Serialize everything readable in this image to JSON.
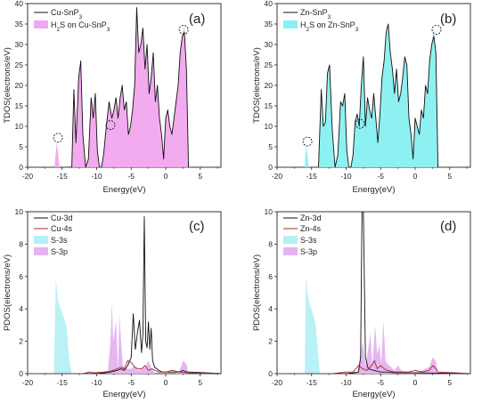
{
  "chart_data": [
    {
      "type": "area",
      "panel_label": "(a)",
      "xlabel": "Energy(eV)",
      "ylabel": "TDOS(electrons/eV)",
      "xlim": [
        -20,
        8
      ],
      "ylim": [
        0,
        40
      ],
      "xticks": [
        -20,
        -15,
        -10,
        -5,
        0,
        5
      ],
      "yticks": [
        0,
        5,
        10,
        15,
        20,
        25,
        30,
        35,
        40
      ],
      "legend_position": "top-left",
      "legend_labels": [
        [
          "Cu-SnP",
          "3",
          ""
        ],
        [
          "H",
          "2",
          "S on Cu-SnP",
          "3",
          ""
        ]
      ],
      "series": [
        {
          "name": "Cu-SnP3",
          "style": "line",
          "color": "#111111",
          "x": [
            -14.3,
            -13.6,
            -13.3,
            -13.0,
            -12.6,
            -12.3,
            -12.0,
            -11.6,
            -11.2,
            -10.8,
            -10.5,
            -10.2,
            -9.9,
            -9.6,
            -9.3,
            -9.0,
            -8.6,
            -8.2,
            -7.8,
            -7.5,
            -7.2,
            -6.9,
            -6.6,
            -6.3,
            -6.0,
            -5.7,
            -5.4,
            -5.1,
            -4.8,
            -4.5,
            -4.2,
            -3.9,
            -3.6,
            -3.3,
            -3.0,
            -2.7,
            -2.4,
            -2.1,
            -1.8,
            -1.5,
            -1.2,
            -0.9,
            -0.6,
            -0.3,
            0.0,
            0.3,
            0.6,
            0.9,
            1.2,
            1.5,
            1.8,
            2.1,
            2.4,
            2.7,
            3.0,
            3.3
          ],
          "y": [
            0,
            0,
            19,
            6,
            22,
            26,
            8,
            0,
            2,
            17,
            12,
            18,
            4,
            0,
            0,
            3,
            10,
            16,
            12,
            14,
            17,
            12,
            17,
            20,
            14,
            16,
            8,
            10,
            14,
            20,
            39,
            28,
            30,
            34,
            24,
            30,
            18,
            22,
            28,
            16,
            20,
            12,
            8,
            2,
            12,
            14,
            10,
            8,
            12,
            16,
            20,
            28,
            32,
            33,
            24,
            0
          ]
        },
        {
          "name": "H2S on Cu-SnP3",
          "style": "fill",
          "color": "#f2a7ef",
          "x": [
            -16.1,
            -15.8,
            -15.6,
            -15.4,
            -14.3,
            -13.6,
            -13.3,
            -13.0,
            -12.6,
            -12.3,
            -12.0,
            -11.6,
            -11.2,
            -10.8,
            -10.5,
            -10.2,
            -9.9,
            -9.6,
            -9.3,
            -9.0,
            -8.6,
            -8.2,
            -7.8,
            -7.5,
            -7.2,
            -6.9,
            -6.6,
            -6.3,
            -6.0,
            -5.7,
            -5.4,
            -5.1,
            -4.8,
            -4.5,
            -4.2,
            -3.9,
            -3.6,
            -3.3,
            -3.0,
            -2.7,
            -2.4,
            -2.1,
            -1.8,
            -1.5,
            -1.2,
            -0.9,
            -0.6,
            -0.3,
            0.0,
            0.3,
            0.6,
            0.9,
            1.2,
            1.5,
            1.8,
            2.1,
            2.4,
            2.7,
            3.0,
            3.3
          ],
          "y": [
            0,
            6,
            4,
            0,
            0,
            0,
            19,
            7,
            22,
            26,
            8,
            0,
            2,
            17,
            12,
            18,
            5,
            0,
            0,
            3,
            10,
            16,
            12,
            14,
            17,
            12,
            17,
            20,
            14,
            16,
            8,
            10,
            14,
            20,
            39,
            28,
            30,
            34,
            24,
            30,
            18,
            22,
            28,
            16,
            20,
            12,
            8,
            2,
            12,
            14,
            10,
            8,
            12,
            16,
            20,
            28,
            32,
            35,
            24,
            0
          ]
        }
      ],
      "annotations": [
        {
          "type": "circle",
          "x": -15.6,
          "y": 7.2
        },
        {
          "type": "circle",
          "x": -8.0,
          "y": 10.3
        },
        {
          "type": "circle",
          "x": 2.6,
          "y": 33.6
        }
      ]
    },
    {
      "type": "area",
      "panel_label": "(b)",
      "xlabel": "Energy(eV)",
      "ylabel": "TDOS(electrons/eV)",
      "xlim": [
        -20,
        8
      ],
      "ylim": [
        0,
        40
      ],
      "xticks": [
        -20,
        -15,
        -10,
        -5,
        0,
        5
      ],
      "yticks": [
        0,
        5,
        10,
        15,
        20,
        25,
        30,
        35,
        40
      ],
      "legend_position": "top-left",
      "legend_labels": [
        [
          "Zn-SnP",
          "3",
          ""
        ],
        [
          "H",
          "2",
          "S on Zn-SnP",
          "3",
          ""
        ]
      ],
      "series": [
        {
          "name": "Zn-SnP3",
          "style": "line",
          "color": "#111111",
          "x": [
            -14.0,
            -13.6,
            -13.3,
            -13.0,
            -12.7,
            -12.4,
            -12.0,
            -11.6,
            -11.2,
            -10.8,
            -10.5,
            -10.2,
            -9.9,
            -9.6,
            -9.3,
            -9.0,
            -8.7,
            -8.4,
            -8.1,
            -7.8,
            -7.5,
            -7.2,
            -6.9,
            -6.6,
            -6.3,
            -6.0,
            -5.7,
            -5.4,
            -5.1,
            -4.8,
            -4.5,
            -4.2,
            -3.9,
            -3.6,
            -3.3,
            -3.0,
            -2.7,
            -2.4,
            -2.1,
            -1.8,
            -1.5,
            -1.2,
            -0.9,
            -0.6,
            -0.3,
            0.0,
            0.3,
            0.6,
            0.9,
            1.2,
            1.5,
            1.8,
            2.1,
            2.4,
            2.7,
            3.0,
            3.3
          ],
          "y": [
            0,
            19,
            10,
            11,
            23,
            25,
            9,
            0,
            3,
            16,
            15,
            18,
            4,
            0,
            0,
            3,
            11,
            13,
            10,
            20,
            27,
            10,
            17,
            14,
            12,
            18,
            12,
            6,
            13,
            22,
            26,
            33,
            35,
            28,
            24,
            18,
            24,
            16,
            18,
            22,
            27,
            25,
            12,
            8,
            2,
            12,
            10,
            8,
            14,
            12,
            20,
            18,
            26,
            30,
            32,
            28,
            0
          ]
        },
        {
          "name": "H2S on Zn-SnP3",
          "style": "fill",
          "color": "#88f0f0",
          "x": [
            -16.0,
            -15.8,
            -15.6,
            -15.4,
            -14.0,
            -13.6,
            -13.3,
            -13.0,
            -12.7,
            -12.4,
            -12.0,
            -11.6,
            -11.2,
            -10.8,
            -10.5,
            -10.2,
            -9.9,
            -9.6,
            -9.3,
            -9.0,
            -8.7,
            -8.4,
            -8.1,
            -7.8,
            -7.5,
            -7.2,
            -6.9,
            -6.6,
            -6.3,
            -6.0,
            -5.7,
            -5.4,
            -5.1,
            -4.8,
            -4.5,
            -4.2,
            -3.9,
            -3.6,
            -3.3,
            -3.0,
            -2.7,
            -2.4,
            -2.1,
            -1.8,
            -1.5,
            -1.2,
            -0.9,
            -0.6,
            -0.3,
            0.0,
            0.3,
            0.6,
            0.9,
            1.2,
            1.5,
            1.8,
            2.1,
            2.4,
            2.7,
            3.0,
            3.3
          ],
          "y": [
            0,
            5.5,
            3,
            0,
            0,
            19,
            10,
            11,
            23,
            25,
            9,
            0,
            3,
            16,
            15,
            18,
            4,
            0,
            0,
            3,
            11,
            13,
            10,
            20,
            27,
            10,
            17,
            14,
            12,
            18,
            12,
            6,
            13,
            22,
            26,
            33,
            35,
            28,
            24,
            18,
            24,
            16,
            18,
            22,
            27,
            25,
            12,
            8,
            2,
            12,
            10,
            8,
            14,
            12,
            20,
            18,
            26,
            30,
            34,
            28,
            0
          ]
        }
      ],
      "annotations": [
        {
          "type": "circle",
          "x": -15.6,
          "y": 6.3
        },
        {
          "type": "circle",
          "x": -8.0,
          "y": 10.6
        },
        {
          "type": "circle",
          "x": 3.1,
          "y": 33.6
        }
      ]
    },
    {
      "type": "area",
      "panel_label": "(c)",
      "xlabel": "Energy(eV)",
      "ylabel": "PDOS(electrons/eV)",
      "xlim": [
        -20,
        8
      ],
      "ylim": [
        0,
        10
      ],
      "xticks": [
        -20,
        -15,
        -10,
        -5,
        0,
        5
      ],
      "yticks": [
        0,
        2,
        4,
        6,
        8,
        10
      ],
      "legend_position": "top-left",
      "legend_labels": [
        [
          "Cu-3d"
        ],
        [
          "Cu-4s"
        ],
        [
          "S-3s"
        ],
        [
          "S-3p"
        ]
      ],
      "series": [
        {
          "name": "Cu-3d",
          "style": "line",
          "color": "#111111",
          "x": [
            -20.5,
            -10.0,
            -8.0,
            -7.0,
            -6.5,
            -6.0,
            -5.5,
            -5.0,
            -4.7,
            -4.4,
            -4.1,
            -3.8,
            -3.5,
            -3.3,
            -3.1,
            -2.9,
            -2.7,
            -2.5,
            -2.3,
            -2.1,
            -1.9,
            -1.6,
            -1.3,
            -1.0,
            -0.5,
            0.0,
            0.5,
            1.0,
            2.0,
            2.5,
            3.0,
            3.5,
            8.5
          ],
          "y": [
            0,
            0,
            0.1,
            0.2,
            0.3,
            0.2,
            0.5,
            1.0,
            3.7,
            1.5,
            2.5,
            3.3,
            1.3,
            2.5,
            9.7,
            2.0,
            1.6,
            3.2,
            1.5,
            2.8,
            0.8,
            0.4,
            0.3,
            0.2,
            0.1,
            0.1,
            0.1,
            0.1,
            0.1,
            0.2,
            0.1,
            0.1,
            0
          ]
        },
        {
          "name": "Cu-4s",
          "style": "line",
          "color": "#a52a2a",
          "x": [
            -20.5,
            -12.0,
            -11.0,
            -10.5,
            -9.0,
            -8.0,
            -7.0,
            -6.5,
            -6.0,
            -5.5,
            -5.0,
            -4.5,
            -4.0,
            -3.5,
            -3.0,
            -2.5,
            -2.0,
            -1.5,
            -1.0,
            0.0,
            1.0,
            2.0,
            3.0,
            8.5
          ],
          "y": [
            0,
            0,
            0.1,
            0.05,
            0.1,
            0.15,
            0.3,
            0.4,
            0.3,
            0.8,
            0.7,
            0.4,
            0.3,
            0.3,
            0.5,
            0.2,
            0.3,
            0.2,
            0.1,
            0.1,
            0.2,
            0.1,
            0.05,
            0
          ]
        },
        {
          "name": "S-3s",
          "style": "fill",
          "color": "#b5f0f5",
          "x": [
            -16.2,
            -15.9,
            -15.6,
            -15.2,
            -14.8,
            -14.4,
            -14.0,
            -13.6
          ],
          "y": [
            0,
            5.9,
            4.5,
            4.0,
            3.5,
            3.0,
            1.0,
            0
          ]
        },
        {
          "name": "S-3p",
          "style": "fill",
          "color": "#e4b3f0",
          "x": [
            -8.4,
            -8.0,
            -7.8,
            -7.6,
            -7.2,
            -6.9,
            -6.7,
            -6.5,
            -6.2,
            -5.8,
            -5.0,
            -4.5,
            -4.0,
            -3.0,
            -2.5,
            -2.0,
            -1.5,
            1.5,
            2.0,
            2.5,
            3.0,
            3.3
          ],
          "y": [
            0,
            2.0,
            4.4,
            2.0,
            3.3,
            0.2,
            3.7,
            2.2,
            0.5,
            0.3,
            0.3,
            0.5,
            0.2,
            0.4,
            0.8,
            0.3,
            0,
            0,
            0.2,
            0.8,
            0.6,
            0
          ]
        }
      ]
    },
    {
      "type": "area",
      "panel_label": "(d)",
      "xlabel": "Energy(eV)",
      "ylabel": "PDOS(electrons/eV)",
      "xlim": [
        -20,
        8
      ],
      "ylim": [
        0,
        10
      ],
      "xticks": [
        -20,
        -15,
        -10,
        -5,
        0,
        5
      ],
      "yticks": [
        0,
        2,
        4,
        6,
        8,
        10
      ],
      "legend_position": "top-left",
      "legend_labels": [
        [
          "Zn-3d"
        ],
        [
          "Zn-4s"
        ],
        [
          "S-3s"
        ],
        [
          "S-3p"
        ]
      ],
      "series": [
        {
          "name": "Zn-3d",
          "style": "line",
          "color": "#111111",
          "x": [
            -20.5,
            -10.0,
            -9.0,
            -8.2,
            -7.9,
            -7.7,
            -7.5,
            -7.2,
            -6.8,
            -6.0,
            -5.0,
            -4.0,
            -3.0,
            0.0,
            8.5
          ],
          "y": [
            0,
            0,
            0.05,
            0.1,
            1.0,
            10,
            10,
            1.0,
            0.3,
            0.2,
            0.1,
            0.1,
            0.05,
            0.05,
            0
          ]
        },
        {
          "name": "Zn-4s",
          "style": "line",
          "color": "#a52a2a",
          "x": [
            -20.5,
            -12.0,
            -11.0,
            -10.0,
            -9.0,
            -8.2,
            -7.6,
            -7.0,
            -6.3,
            -5.9,
            -5.5,
            -5.0,
            -4.5,
            -4.0,
            -3.0,
            -2.0,
            -1.0,
            0.0,
            1.0,
            2.0,
            2.6,
            3.0,
            3.3,
            8.5
          ],
          "y": [
            0,
            0,
            0.05,
            0.1,
            0.1,
            0.5,
            0.3,
            0.2,
            0.5,
            0.8,
            0.3,
            0.5,
            0.3,
            0.2,
            0.1,
            0.1,
            0.1,
            0.2,
            0.1,
            0.2,
            0.5,
            0.3,
            0.1,
            0
          ]
        },
        {
          "name": "S-3s",
          "style": "fill",
          "color": "#b5f0f5",
          "x": [
            -16.0,
            -15.8,
            -15.5,
            -15.2,
            -14.8,
            -14.4,
            -14.0,
            -13.8
          ],
          "y": [
            0,
            6.0,
            4.7,
            4.2,
            3.7,
            3.0,
            1.0,
            0
          ]
        },
        {
          "name": "S-3p",
          "style": "fill",
          "color": "#e4b3f0",
          "x": [
            -8.4,
            -8.0,
            -7.6,
            -7.2,
            -6.8,
            -6.5,
            -6.2,
            -5.8,
            -5.5,
            -5.2,
            -4.9,
            -4.6,
            -4.3,
            -4.0,
            -3.5,
            -3.0,
            -2.5,
            -2.0,
            -1.0,
            0.0,
            1.0,
            2.0,
            2.5,
            3.0,
            3.3
          ],
          "y": [
            0,
            1.0,
            2.0,
            0.5,
            1.5,
            2.5,
            0.5,
            3.0,
            1.2,
            1.8,
            0.6,
            3.3,
            0.8,
            0.6,
            0.4,
            0.2,
            0.5,
            0.2,
            0.1,
            0.1,
            0.2,
            0.4,
            1.0,
            0.8,
            0
          ]
        }
      ]
    }
  ]
}
